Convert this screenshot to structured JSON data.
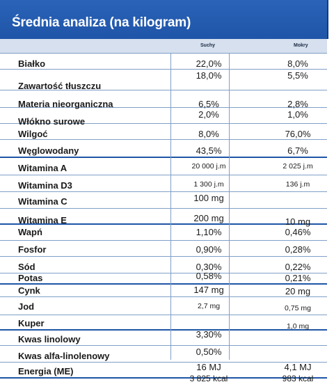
{
  "title": "Średnia analiza (na kilogram)",
  "columns": {
    "dry": "Suchy",
    "wet": "Mokry"
  },
  "rows": [
    {
      "label": "Białko",
      "dry": "22,0%",
      "wet": "8,0%"
    },
    {
      "label": "Zawartość tłuszczu",
      "dry": "18,0%",
      "wet": "5,5%"
    },
    {
      "label": "Materia nieorganiczna",
      "dry": "6,5%",
      "wet": "2,8%"
    },
    {
      "label": "Włókno surowe",
      "dry": "2,0%",
      "wet": "1,0%"
    },
    {
      "label": "Wilgoć",
      "dry": "8,0%",
      "wet": "76,0%"
    },
    {
      "label": "Węglowodany",
      "dry": "43,5%",
      "wet": "6,7%"
    },
    {
      "label": "Witamina A",
      "dry": "20 000 j.m",
      "wet": "2 025 j.m"
    },
    {
      "label": "Witamina D3",
      "dry": "1 300 j.m",
      "wet": "136 j.m"
    },
    {
      "label": "Witamina C",
      "dry": "100 mg",
      "wet": ""
    },
    {
      "label": "Witamina E",
      "dry": "200 mg",
      "wet": "10 mg"
    },
    {
      "label": "Wapń",
      "dry": "1,10%",
      "wet": "0,46%"
    },
    {
      "label": "Fosfor",
      "dry": "0,90%",
      "wet": "0,28%"
    },
    {
      "label": "Sód",
      "dry": "0,30%",
      "wet": "0,22%"
    },
    {
      "label": "Potas",
      "dry": "0,58%",
      "wet": "0,21%"
    },
    {
      "label": "Cynk",
      "dry": "147 mg",
      "wet": "20 mg"
    },
    {
      "label": "Jod",
      "dry": "2,7 mg",
      "wet": "0,75 mg"
    },
    {
      "label": "Kuper",
      "dry": "",
      "wet": "1,0 mg"
    },
    {
      "label": "Kwas linolowy",
      "dry": "3,30%",
      "wet": ""
    },
    {
      "label": "Kwas alfa-linolenowy",
      "dry": "0,50%",
      "wet": ""
    },
    {
      "label": "Energia (ME)",
      "dry": "16 MJ",
      "wet": "4,1 MJ"
    }
  ],
  "energy_kcal": {
    "dry": "3 825 kcal",
    "wet": "983 kcal"
  }
}
